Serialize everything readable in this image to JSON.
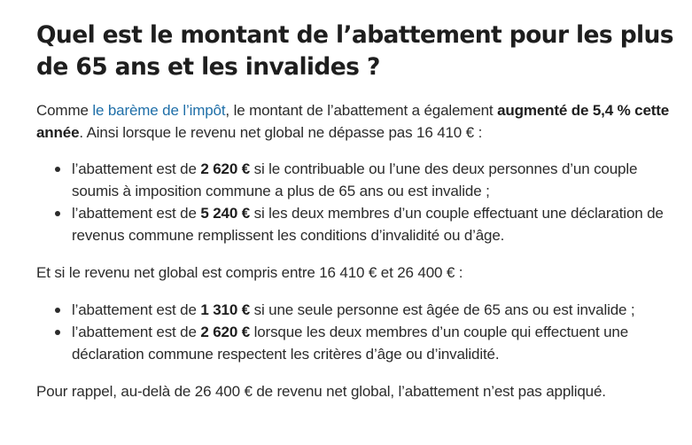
{
  "article": {
    "title": "Quel est le montant de l’abattement pour les plus de 65 ans et les invalides ?",
    "intro": {
      "pre": "Comme ",
      "link_text": "le barème de l’impôt",
      "mid": ", le montant de l’abattement a également ",
      "bold": "augmenté de 5,4 % cette année",
      "post": ". Ainsi lorsque le revenu net global ne dépasse pas 16 410 € :"
    },
    "list1": [
      {
        "pre": "l’abattement est de ",
        "amount": "2 620 €",
        "post": " si le contribuable ou l’une des deux personnes d’un couple soumis à imposition commune a plus de 65 ans ou est invalide ;"
      },
      {
        "pre": "l’abattement est de ",
        "amount": "5 240 €",
        "post": " si les deux membres d’un couple effectuant une déclaration de revenus commune remplissent les conditions d’invalidité ou d’âge."
      }
    ],
    "middle": "Et si le revenu net global est compris entre 16 410 € et 26 400 € :",
    "list2": [
      {
        "pre": "l’abattement est de ",
        "amount": "1 310 €",
        "post": " si une seule personne est âgée de 65 ans ou est invalide ;"
      },
      {
        "pre": "l’abattement est de ",
        "amount": "2 620 €",
        "post": " lorsque les deux membres d’un couple qui effectuent une déclaration commune respectent les critères d’âge ou d’invalidité."
      }
    ],
    "outro": "Pour rappel, au-delà de 26 400 € de revenu net global, l’abattement n’est pas appliqué."
  },
  "colors": {
    "link": "#1f6fa8",
    "text": "#2b2b2b",
    "heading": "#1e1e1e"
  }
}
